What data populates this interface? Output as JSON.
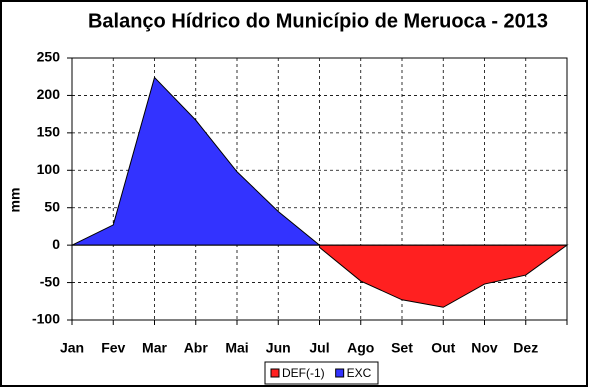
{
  "chart_data": {
    "type": "area",
    "title": "Balanço Hídrico  do Município de Meruoca - 2013",
    "y_label": "mm",
    "categories": [
      "Jan",
      "Fev",
      "Mar",
      "Abr",
      "Mai",
      "Jun",
      "Jul",
      "Ago",
      "Set",
      "Out",
      "Nov",
      "Dez",
      null
    ],
    "series": [
      {
        "name": "DEF(-1)",
        "color": "#ff2020",
        "values": [
          null,
          null,
          null,
          null,
          null,
          null,
          -3,
          -48,
          -73,
          -83,
          -52,
          -40,
          0
        ]
      },
      {
        "name": "EXC",
        "color": "#3333ff",
        "values": [
          0,
          27,
          224,
          167,
          98,
          45,
          0,
          null,
          null,
          null,
          null,
          null,
          null
        ]
      }
    ],
    "ylim": [
      -100,
      250
    ],
    "yticks": [
      -100,
      -50,
      0,
      50,
      100,
      150,
      200,
      250
    ],
    "grid": true,
    "legend": "bottom"
  }
}
